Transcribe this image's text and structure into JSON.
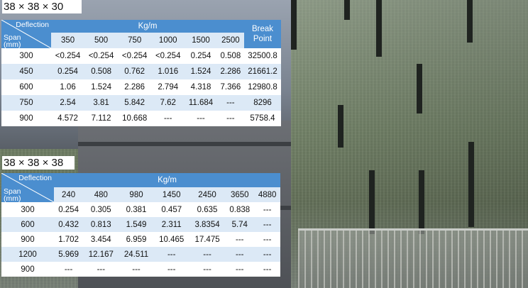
{
  "table1": {
    "title": "38 × 38 × 30",
    "corner_deflection": "Deflection",
    "corner_span": "Span",
    "corner_unit": "(mm)",
    "group_header": "Kg/m",
    "break_point_line1": "Break",
    "break_point_line2": "Point",
    "columns": [
      "350",
      "500",
      "750",
      "1000",
      "1500",
      "2500"
    ],
    "rows": [
      {
        "span": "300",
        "values": [
          "<0.254",
          "<0.254",
          "<0.254",
          "<0.254",
          "0.254",
          "0.508"
        ],
        "break": "32500.8"
      },
      {
        "span": "450",
        "values": [
          "0.254",
          "0.508",
          "0.762",
          "1.016",
          "1.524",
          "2.286"
        ],
        "break": "21661.2"
      },
      {
        "span": "600",
        "values": [
          "1.06",
          "1.524",
          "2.286",
          "2.794",
          "4.318",
          "7.366"
        ],
        "break": "12980.8"
      },
      {
        "span": "750",
        "values": [
          "2.54",
          "3.81",
          "5.842",
          "7.62",
          "11.684",
          "---"
        ],
        "break": "8296"
      },
      {
        "span": "900",
        "values": [
          "4.572",
          "7.112",
          "10.668",
          "---",
          "---",
          "---"
        ],
        "break": "5758.4"
      }
    ]
  },
  "table2": {
    "title": "38 × 38 × 38",
    "corner_deflection": "Deflection",
    "corner_span": "Span",
    "corner_unit": "(mm)",
    "group_header": "Kg/m",
    "columns": [
      "240",
      "480",
      "980",
      "1450",
      "2450",
      "3650",
      "4880"
    ],
    "rows": [
      {
        "span": "300",
        "values": [
          "0.254",
          "0.305",
          "0.381",
          "0.457",
          "0.635",
          "0.838",
          "---"
        ]
      },
      {
        "span": "600",
        "values": [
          "0.432",
          "0.813",
          "1.549",
          "2.311",
          "3.8354",
          "5.74",
          "---"
        ]
      },
      {
        "span": "900",
        "values": [
          "1.702",
          "3.454",
          "6.959",
          "10.465",
          "17.475",
          "---",
          "---"
        ]
      },
      {
        "span": "1200",
        "values": [
          "5.969",
          "12.167",
          "24.511",
          "---",
          "---",
          "---",
          "---"
        ]
      },
      {
        "span": "900",
        "values": [
          "---",
          "---",
          "---",
          "---",
          "---",
          "---",
          "---"
        ]
      }
    ]
  },
  "colors": {
    "header_blue": "#4b8ecf",
    "header_light": "#dce9f6"
  }
}
